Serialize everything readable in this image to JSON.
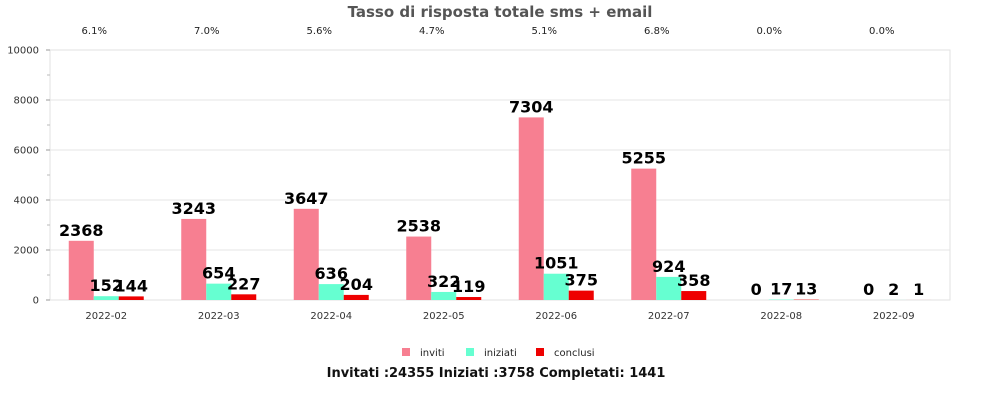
{
  "chart_data": {
    "type": "bar",
    "title": "Tasso di risposta totale sms + email",
    "categories": [
      "2022-02",
      "2022-03",
      "2022-04",
      "2022-05",
      "2022-06",
      "2022-07",
      "2022-08",
      "2022-09"
    ],
    "rates": [
      "6.1%",
      "7.0%",
      "5.6%",
      "4.7%",
      "5.1%",
      "6.8%",
      "0.0%",
      "0.0%"
    ],
    "series": [
      {
        "name": "inviti",
        "color": "#f77f91",
        "values": [
          2368,
          3243,
          3647,
          2538,
          7304,
          5255,
          0,
          0
        ]
      },
      {
        "name": "iniziati",
        "color": "#66ffd1",
        "values": [
          152,
          654,
          636,
          322,
          1051,
          924,
          17,
          2
        ]
      },
      {
        "name": "conclusi",
        "color": "#ee0000",
        "values": [
          144,
          227,
          204,
          119,
          375,
          358,
          13,
          1
        ]
      }
    ],
    "ylim": [
      0,
      10000
    ],
    "yticks": [
      0,
      2000,
      4000,
      6000,
      8000,
      10000
    ],
    "grid": true,
    "legend": "bottom-center",
    "footer": "Invitati :24355 Iniziati :3758 Completati: 1441"
  }
}
